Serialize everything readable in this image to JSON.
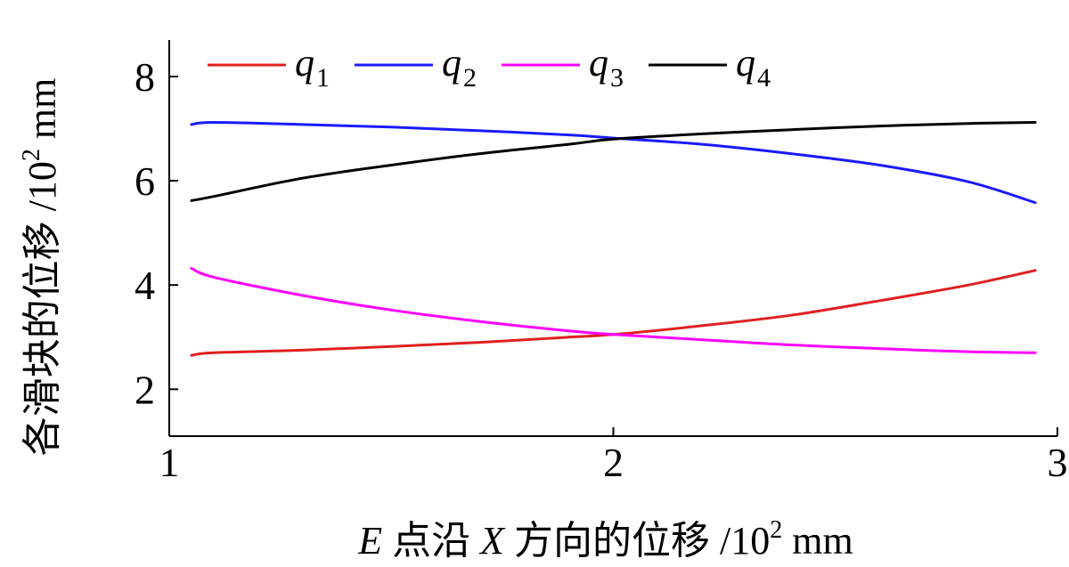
{
  "chart_data": {
    "type": "line",
    "xlabel_parts": {
      "var": "E",
      "text": " 点沿 ",
      "var2": "X",
      "text2": " 方向的位移 /10",
      "exp": "2",
      "unit": " mm"
    },
    "ylabel_parts": {
      "text": "各滑块的位移 /10",
      "exp": "2",
      "unit": " mm"
    },
    "xlim": [
      1,
      3
    ],
    "ylim": [
      1.1,
      8.7
    ],
    "xticks": [
      1,
      2,
      3
    ],
    "yticks": [
      2,
      4,
      6,
      8
    ],
    "grid": false,
    "legend_position": "top",
    "series": [
      {
        "name": "q",
        "sub": "1",
        "color": "#e02020",
        "x": [
          1.05,
          1.1,
          1.3,
          1.5,
          1.7,
          1.9,
          2.0,
          2.2,
          2.4,
          2.6,
          2.8,
          2.95
        ],
        "y": [
          2.65,
          2.7,
          2.75,
          2.82,
          2.9,
          3.0,
          3.05,
          3.22,
          3.42,
          3.7,
          4.0,
          4.28
        ]
      },
      {
        "name": "q",
        "sub": "2",
        "color": "#1a1aff",
        "x": [
          1.05,
          1.1,
          1.3,
          1.5,
          1.7,
          1.9,
          2.0,
          2.2,
          2.4,
          2.6,
          2.8,
          2.95
        ],
        "y": [
          7.08,
          7.12,
          7.08,
          7.03,
          6.96,
          6.88,
          6.82,
          6.7,
          6.52,
          6.3,
          5.98,
          5.58
        ]
      },
      {
        "name": "q",
        "sub": "3",
        "color": "#ff00ff",
        "x": [
          1.05,
          1.1,
          1.3,
          1.5,
          1.7,
          1.9,
          2.0,
          2.2,
          2.4,
          2.6,
          2.8,
          2.95
        ],
        "y": [
          4.32,
          4.15,
          3.8,
          3.52,
          3.3,
          3.12,
          3.05,
          2.95,
          2.85,
          2.78,
          2.72,
          2.7
        ]
      },
      {
        "name": "q",
        "sub": "4",
        "color": "#000000",
        "x": [
          1.05,
          1.1,
          1.3,
          1.5,
          1.7,
          1.9,
          2.0,
          2.2,
          2.4,
          2.6,
          2.8,
          2.95
        ],
        "y": [
          5.62,
          5.7,
          6.05,
          6.3,
          6.52,
          6.7,
          6.8,
          6.9,
          6.98,
          7.05,
          7.1,
          7.12
        ]
      }
    ]
  }
}
